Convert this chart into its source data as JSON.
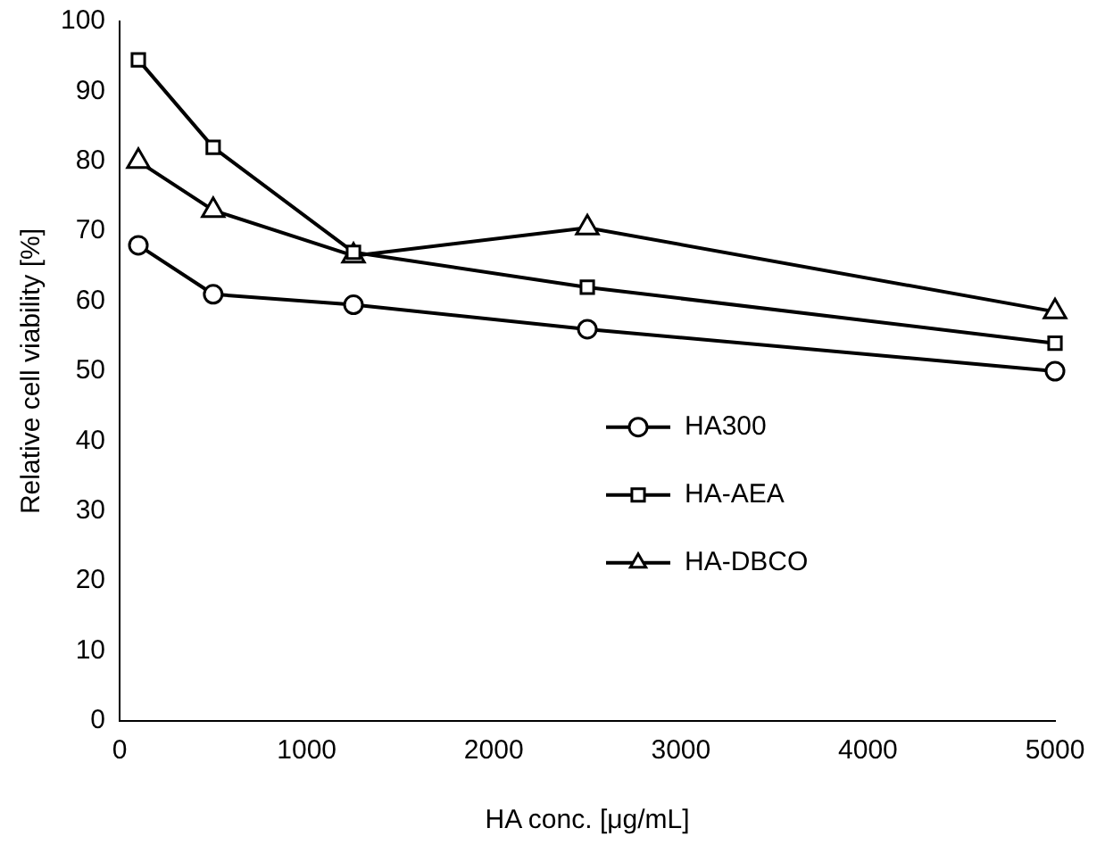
{
  "chart_data": {
    "type": "line",
    "xlabel": "HA conc. [μg/mL]",
    "ylabel": "Relative cell viability [%]",
    "x": [
      100,
      500,
      1250,
      2500,
      5000
    ],
    "xlim": [
      0,
      5000
    ],
    "xticks": [
      0,
      1000,
      2000,
      3000,
      4000,
      5000
    ],
    "ylim": [
      0,
      100
    ],
    "yticks": [
      0,
      10,
      20,
      30,
      40,
      50,
      60,
      70,
      80,
      90,
      100
    ],
    "grid": false,
    "legend": "right",
    "line_style": "solid",
    "series": [
      {
        "name": "HA300",
        "color": "#000000",
        "marker": "circle",
        "values": [
          68,
          61,
          59.5,
          56,
          50
        ]
      },
      {
        "name": "HA-AEA",
        "color": "#000000",
        "marker": "square",
        "values": [
          94.5,
          82,
          67,
          62,
          54
        ]
      },
      {
        "name": "HA-DBCO",
        "color": "#000000",
        "marker": "triangle",
        "values": [
          80,
          73,
          66.5,
          70.5,
          58.5
        ]
      }
    ]
  }
}
